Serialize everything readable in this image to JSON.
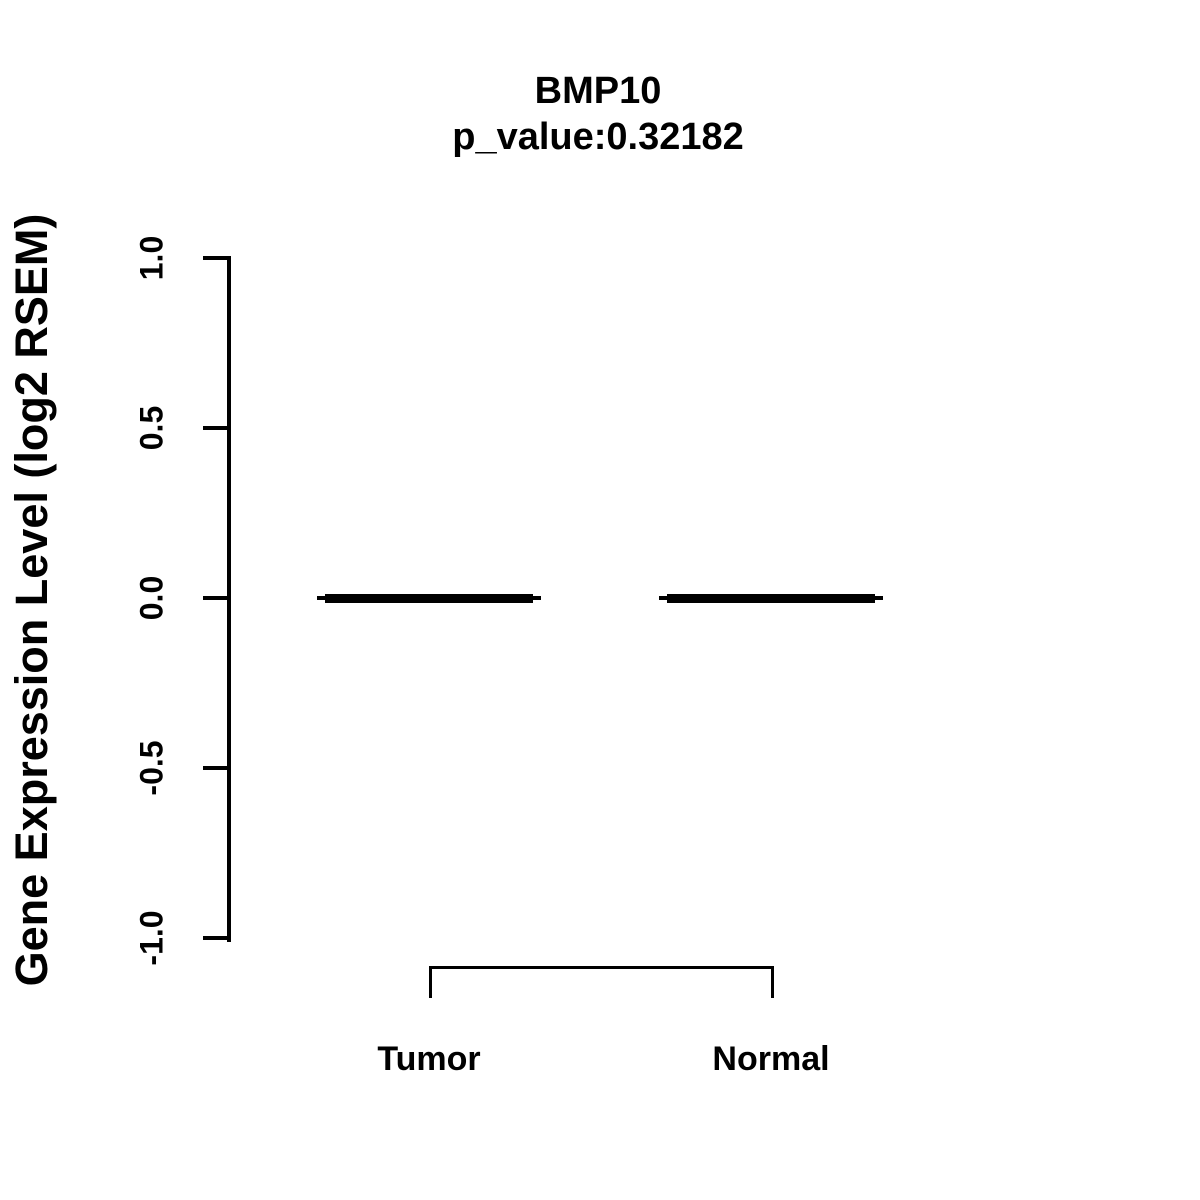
{
  "colors": {
    "foreground": "#000000",
    "background": "#ffffff"
  },
  "chart_data": {
    "type": "boxplot",
    "title": "BMP10",
    "subtitle": "p_value:0.32182",
    "gene": "BMP10",
    "p_value": 0.32182,
    "xlabel": "",
    "ylabel": "Gene Expression Level (log2 RSEM)",
    "ylim": [
      -1.0,
      1.0
    ],
    "ytick_labels": [
      "1.0",
      "0.5",
      "0.0",
      "-0.5",
      "-1.0"
    ],
    "ytick_values": [
      1.0,
      0.5,
      0.0,
      -0.5,
      -1.0
    ],
    "categories": [
      "Tumor",
      "Normal"
    ],
    "groups": [
      {
        "name": "Tumor",
        "median": 0.0,
        "q1": 0.0,
        "q3": 0.0,
        "whisker_low": 0.0,
        "whisker_high": 0.0
      },
      {
        "name": "Normal",
        "median": 0.0,
        "q1": 0.0,
        "q3": 0.0,
        "whisker_low": 0.0,
        "whisker_high": 0.0
      }
    ],
    "comparison_bracket": {
      "between": [
        "Tumor",
        "Normal"
      ]
    },
    "grid": false,
    "legend": false
  }
}
